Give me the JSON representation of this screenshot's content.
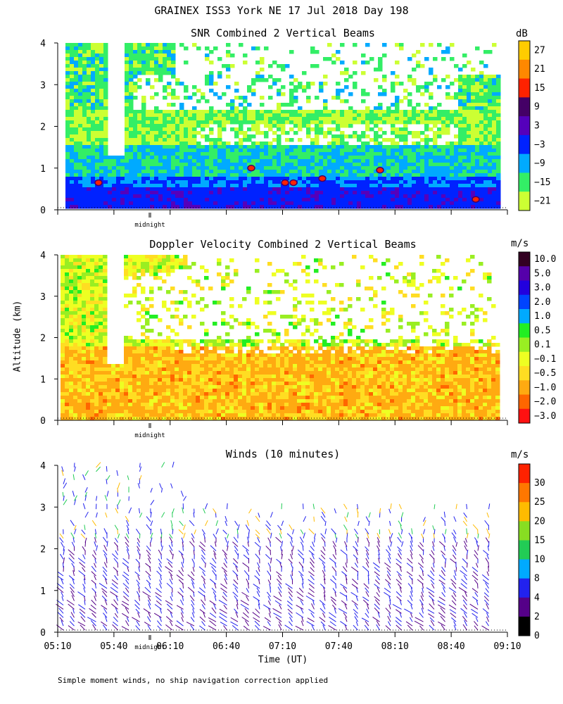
{
  "header": {
    "title": "GRAINEX ISS3 York NE  17 Jul 2018 Day 198"
  },
  "footer": {
    "note": "Simple moment winds, no ship navigation correction applied"
  },
  "axes": {
    "ylabel": "Altitude (km)",
    "xlabel": "Time (UT)",
    "ytick_labels": [
      "0",
      "1",
      "2",
      "3",
      "4"
    ],
    "xtick_labels": [
      "05:10",
      "05:40",
      "06:10",
      "06:40",
      "07:10",
      "07:40",
      "08:10",
      "08:40",
      "09:10"
    ],
    "midnight_label": "midnight"
  },
  "colors": {
    "missing": "#ffffff",
    "frame": "#000000"
  },
  "chart_data": [
    {
      "type": "heatmap",
      "title": "SNR Combined 2 Vertical Beams",
      "xlabel": "",
      "ylabel": "Altitude (km)",
      "xlim": [
        "05:10",
        "09:10"
      ],
      "ylim": [
        0,
        4
      ],
      "colorbar": {
        "unit": "dB",
        "labels": [
          "27",
          "21",
          "15",
          "9",
          "3",
          "−3",
          "−9",
          "−15",
          "−21"
        ],
        "colors": [
          "#ffcc00",
          "#ff8800",
          "#ff2200",
          "#440066",
          "#5500bb",
          "#0022ff",
          "#00aaff",
          "#33ee66",
          "#ccff33"
        ]
      },
      "description_values": {
        "near_surface_band_km": [
          0.3,
          0.8
        ],
        "missing_gap_time": "05:35",
        "top_of_data_km": 4.0
      }
    },
    {
      "type": "heatmap",
      "title": "Doppler Velocity Combined 2 Vertical Beams",
      "xlabel": "",
      "ylabel": "Altitude (km)",
      "xlim": [
        "05:10",
        "09:10"
      ],
      "ylim": [
        0,
        4
      ],
      "colorbar": {
        "unit": "m/s",
        "labels": [
          "10.0",
          "5.0",
          "3.0",
          "2.0",
          "1.0",
          "0.5",
          "0.1",
          "−0.1",
          "−0.5",
          "−1.0",
          "−2.0",
          "−3.0"
        ],
        "colors": [
          "#330022",
          "#5500aa",
          "#2200dd",
          "#0044ff",
          "#00aaff",
          "#22ee22",
          "#99ee22",
          "#eeff22",
          "#ffdd22",
          "#ffaa11",
          "#ff6600",
          "#ff1111"
        ]
      }
    },
    {
      "type": "barbs",
      "title": "Winds (10 minutes)",
      "xlabel": "Time (UT)",
      "ylabel": "Altitude (km)",
      "xlim": [
        "05:10",
        "09:10"
      ],
      "ylim": [
        0,
        4
      ],
      "colorbar": {
        "unit": "m/s",
        "labels": [
          "30",
          "25",
          "20",
          "15",
          "10",
          "8",
          "4",
          "2",
          "0"
        ],
        "colors": [
          "#ff2200",
          "#ff7700",
          "#ffbb00",
          "#88dd22",
          "#22cc55",
          "#00aaff",
          "#2222ee",
          "#550088",
          "#000000"
        ]
      }
    }
  ]
}
